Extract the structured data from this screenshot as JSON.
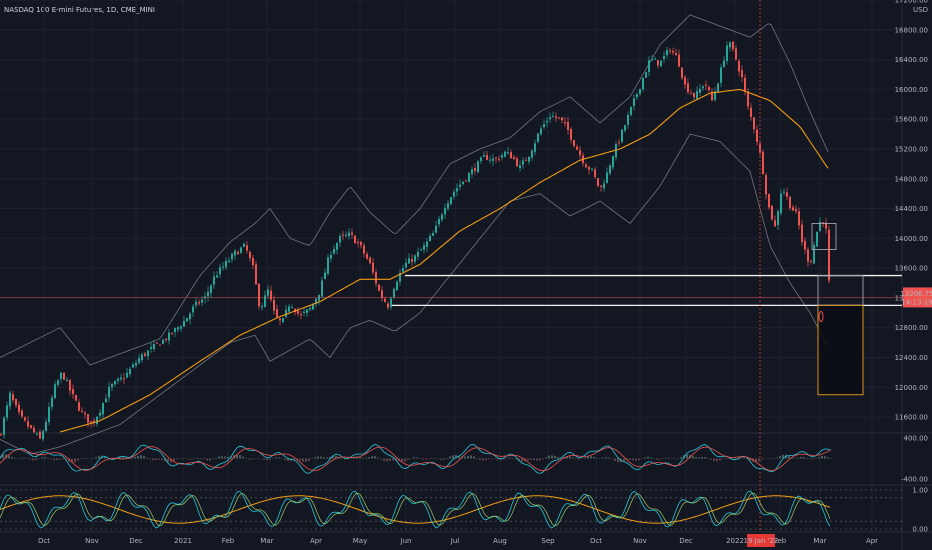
{
  "header": {
    "title": "NASDAQ 100 E-mini Futures, 1D, CME_MINI",
    "currency": "USD"
  },
  "colors": {
    "background": "#131722",
    "grid": "#1e2230",
    "text": "#b2b5be",
    "up": "#26a69a",
    "down": "#ef5350",
    "ma": "#f39c12",
    "bands": "#8a8d96",
    "levels": "#f0f0f0",
    "marker": "#e53935",
    "box": "#f0a020"
  },
  "price_labels": {
    "last_price": "13206.75",
    "countdown": "14:13:19"
  },
  "date_marker": "19 Jan '22",
  "chart_data": [
    {
      "type": "candlestick",
      "name": "main",
      "x_tick_labels": [
        "Oct",
        "Nov",
        "Dec",
        "2021",
        "Feb",
        "Mar",
        "Apr",
        "May",
        "Jun",
        "Jul",
        "Aug",
        "Sep",
        "Oct",
        "Nov",
        "Dec",
        "2022",
        "Feb",
        "Mar",
        "Apr"
      ],
      "y_tick_labels": [
        "17200.00",
        "16800.00",
        "16400.00",
        "16000.00",
        "15600.00",
        "15200.00",
        "14800.00",
        "14400.00",
        "14000.00",
        "13600.00",
        "13200.00",
        "12800.00",
        "12400.00",
        "12000.00",
        "11600.00"
      ],
      "ylim": [
        11400,
        17200
      ],
      "horizontal_levels": [
        13500,
        13100
      ],
      "last_price": 13206.75,
      "close_path": [
        [
          0,
          11350
        ],
        [
          10,
          11900
        ],
        [
          20,
          11600
        ],
        [
          30,
          11450
        ],
        [
          40,
          11300
        ],
        [
          45,
          11500
        ],
        [
          55,
          12000
        ],
        [
          62,
          12200
        ],
        [
          72,
          11900
        ],
        [
          82,
          11650
        ],
        [
          92,
          11500
        ],
        [
          100,
          11700
        ],
        [
          110,
          12000
        ],
        [
          125,
          12150
        ],
        [
          140,
          12400
        ],
        [
          155,
          12550
        ],
        [
          170,
          12700
        ],
        [
          185,
          12900
        ],
        [
          195,
          13100
        ],
        [
          205,
          13200
        ],
        [
          215,
          13500
        ],
        [
          225,
          13650
        ],
        [
          235,
          13800
        ],
        [
          245,
          13900
        ],
        [
          253,
          13600
        ],
        [
          260,
          13050
        ],
        [
          268,
          13300
        ],
        [
          275,
          12950
        ],
        [
          282,
          12850
        ],
        [
          290,
          13150
        ],
        [
          300,
          12950
        ],
        [
          310,
          13050
        ],
        [
          320,
          13300
        ],
        [
          330,
          13800
        ],
        [
          340,
          14000
        ],
        [
          350,
          14050
        ],
        [
          360,
          13900
        ],
        [
          370,
          13650
        ],
        [
          380,
          13250
        ],
        [
          388,
          13100
        ],
        [
          395,
          13400
        ],
        [
          405,
          13650
        ],
        [
          415,
          13750
        ],
        [
          425,
          13900
        ],
        [
          435,
          14100
        ],
        [
          445,
          14450
        ],
        [
          455,
          14650
        ],
        [
          465,
          14800
        ],
        [
          475,
          14950
        ],
        [
          485,
          15100
        ],
        [
          495,
          15050
        ],
        [
          505,
          15150
        ],
        [
          512,
          15100
        ],
        [
          520,
          14950
        ],
        [
          530,
          15150
        ],
        [
          540,
          15450
        ],
        [
          550,
          15650
        ],
        [
          560,
          15600
        ],
        [
          568,
          15450
        ],
        [
          575,
          15250
        ],
        [
          585,
          15000
        ],
        [
          592,
          14900
        ],
        [
          600,
          14650
        ],
        [
          608,
          14900
        ],
        [
          612,
          15100
        ],
        [
          620,
          15350
        ],
        [
          630,
          15700
        ],
        [
          640,
          16050
        ],
        [
          650,
          16400
        ],
        [
          660,
          16350
        ],
        [
          670,
          16550
        ],
        [
          678,
          16400
        ],
        [
          685,
          16050
        ],
        [
          695,
          15900
        ],
        [
          705,
          16100
        ],
        [
          712,
          15850
        ],
        [
          720,
          16200
        ],
        [
          728,
          16650
        ],
        [
          735,
          16450
        ],
        [
          742,
          16150
        ],
        [
          748,
          15750
        ],
        [
          755,
          15450
        ],
        [
          762,
          15000
        ],
        [
          768,
          14450
        ],
        [
          775,
          14150
        ],
        [
          782,
          14700
        ],
        [
          790,
          14450
        ],
        [
          797,
          14300
        ],
        [
          803,
          13900
        ],
        [
          810,
          13650
        ],
        [
          816,
          14050
        ],
        [
          822,
          14300
        ],
        [
          826,
          14100
        ],
        [
          829,
          13400
        ],
        [
          831,
          13250
        ]
      ],
      "ma_path": [
        [
          60,
          11400
        ],
        [
          100,
          11550
        ],
        [
          150,
          11900
        ],
        [
          200,
          12350
        ],
        [
          240,
          12700
        ],
        [
          280,
          12950
        ],
        [
          320,
          13150
        ],
        [
          360,
          13450
        ],
        [
          390,
          13450
        ],
        [
          420,
          13650
        ],
        [
          460,
          14100
        ],
        [
          500,
          14400
        ],
        [
          540,
          14750
        ],
        [
          580,
          15050
        ],
        [
          620,
          15200
        ],
        [
          650,
          15400
        ],
        [
          680,
          15750
        ],
        [
          710,
          15950
        ],
        [
          740,
          16000
        ],
        [
          770,
          15850
        ],
        [
          800,
          15500
        ],
        [
          830,
          14900
        ]
      ],
      "bb_upper_path": [
        [
          0,
          12400
        ],
        [
          30,
          12600
        ],
        [
          60,
          12800
        ],
        [
          90,
          12300
        ],
        [
          120,
          12450
        ],
        [
          160,
          12650
        ],
        [
          200,
          13500
        ],
        [
          230,
          13950
        ],
        [
          255,
          14200
        ],
        [
          270,
          14400
        ],
        [
          290,
          14000
        ],
        [
          310,
          13900
        ],
        [
          330,
          14350
        ],
        [
          350,
          14700
        ],
        [
          370,
          14350
        ],
        [
          395,
          14050
        ],
        [
          420,
          14400
        ],
        [
          450,
          15000
        ],
        [
          480,
          15200
        ],
        [
          510,
          15350
        ],
        [
          540,
          15700
        ],
        [
          570,
          15900
        ],
        [
          600,
          15550
        ],
        [
          630,
          15900
        ],
        [
          660,
          16600
        ],
        [
          690,
          17000
        ],
        [
          720,
          16850
        ],
        [
          750,
          16700
        ],
        [
          770,
          16900
        ],
        [
          790,
          16350
        ],
        [
          810,
          15700
        ],
        [
          830,
          15100
        ]
      ],
      "bb_lower_path": [
        [
          0,
          11300
        ],
        [
          30,
          11100
        ],
        [
          60,
          11200
        ],
        [
          90,
          11350
        ],
        [
          120,
          11500
        ],
        [
          160,
          11900
        ],
        [
          200,
          12300
        ],
        [
          230,
          12600
        ],
        [
          255,
          12700
        ],
        [
          270,
          12350
        ],
        [
          290,
          12500
        ],
        [
          310,
          12650
        ],
        [
          330,
          12400
        ],
        [
          350,
          12800
        ],
        [
          370,
          12900
        ],
        [
          395,
          12750
        ],
        [
          420,
          13000
        ],
        [
          450,
          13500
        ],
        [
          480,
          14000
        ],
        [
          510,
          14500
        ],
        [
          540,
          14600
        ],
        [
          570,
          14300
        ],
        [
          600,
          14500
        ],
        [
          630,
          14200
        ],
        [
          660,
          14700
        ],
        [
          690,
          15400
        ],
        [
          720,
          15300
        ],
        [
          750,
          14900
        ],
        [
          770,
          13900
        ],
        [
          790,
          13400
        ],
        [
          810,
          13000
        ],
        [
          830,
          12500
        ]
      ],
      "annotation_boxes": [
        {
          "from_x": 812,
          "to_x": 836,
          "top": 14200,
          "bottom": 13850
        },
        {
          "from_x": 818,
          "to_x": 863,
          "top": 13500,
          "bottom": 13100
        },
        {
          "from_x": 818,
          "to_x": 863,
          "top": 13100,
          "bottom": 11900
        }
      ]
    },
    {
      "type": "line",
      "name": "macd",
      "y_tick_labels": [
        "400.00",
        "-400.00"
      ],
      "ylim": [
        -500,
        500
      ]
    },
    {
      "type": "line",
      "name": "stochastic",
      "y_tick_labels": [
        "1.00",
        "0.00"
      ],
      "ylim": [
        -0.05,
        1.1
      ]
    }
  ]
}
